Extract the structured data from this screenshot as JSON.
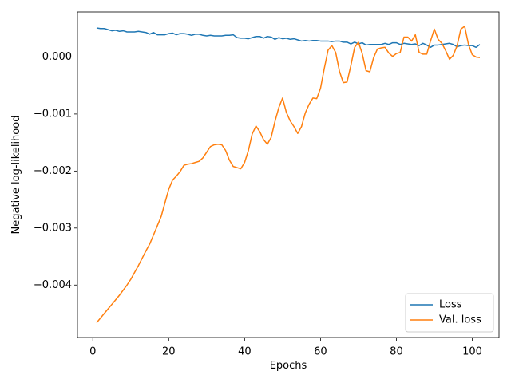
{
  "chart_data": {
    "type": "line",
    "x_label": "Epochs",
    "y_label": "Negative log-likelihood",
    "x": [
      1,
      2,
      3,
      4,
      5,
      6,
      7,
      8,
      9,
      10,
      11,
      12,
      13,
      14,
      15,
      16,
      17,
      18,
      19,
      20,
      21,
      22,
      23,
      24,
      25,
      26,
      27,
      28,
      29,
      30,
      31,
      32,
      33,
      34,
      35,
      36,
      37,
      38,
      39,
      40,
      41,
      42,
      43,
      44,
      45,
      46,
      47,
      48,
      49,
      50,
      51,
      52,
      53,
      54,
      55,
      56,
      57,
      58,
      59,
      60,
      61,
      62,
      63,
      64,
      65,
      66,
      67,
      68,
      69,
      70,
      71,
      72,
      73,
      74,
      75,
      76,
      77,
      78,
      79,
      80,
      81,
      82,
      83,
      84,
      85,
      86,
      87,
      88,
      89,
      90,
      91,
      92,
      93,
      94,
      95,
      96,
      97,
      98,
      99,
      100,
      101,
      102
    ],
    "series": [
      {
        "name": "Loss",
        "color": "#1f77b4",
        "values": [
          0.00051,
          0.0005,
          0.0005,
          0.00048,
          0.00046,
          0.00047,
          0.00045,
          0.00046,
          0.00044,
          0.00044,
          0.00044,
          0.00045,
          0.00044,
          0.00043,
          0.0004,
          0.00043,
          0.00039,
          0.00039,
          0.00039,
          0.00041,
          0.00042,
          0.00039,
          0.00041,
          0.00041,
          0.0004,
          0.00038,
          0.0004,
          0.0004,
          0.00038,
          0.00037,
          0.00038,
          0.00037,
          0.00037,
          0.00037,
          0.00038,
          0.00038,
          0.00039,
          0.00034,
          0.00033,
          0.00033,
          0.00032,
          0.00034,
          0.00036,
          0.00036,
          0.00033,
          0.00036,
          0.00035,
          0.00031,
          0.00034,
          0.00032,
          0.00033,
          0.00031,
          0.00032,
          0.0003,
          0.00028,
          0.00029,
          0.00028,
          0.00029,
          0.00029,
          0.00028,
          0.00028,
          0.00028,
          0.00027,
          0.00028,
          0.00028,
          0.00026,
          0.00026,
          0.00023,
          0.00026,
          0.00023,
          0.00025,
          0.00021,
          0.00022,
          0.00022,
          0.00022,
          0.00022,
          0.00024,
          0.00022,
          0.00025,
          0.00025,
          0.00022,
          0.00024,
          0.00023,
          0.00022,
          0.00023,
          0.0002,
          0.00024,
          0.00021,
          0.00017,
          0.00021,
          0.00021,
          0.00022,
          0.00023,
          0.00024,
          0.00022,
          0.00018,
          0.0002,
          0.00021,
          0.0002,
          0.0002,
          0.00017,
          0.00022
        ]
      },
      {
        "name": "Val. loss",
        "color": "#ff7f0e",
        "values": [
          -0.00466,
          -0.00458,
          -0.0045,
          -0.00442,
          -0.00434,
          -0.00426,
          -0.00418,
          -0.00409,
          -0.004,
          -0.0039,
          -0.00378,
          -0.00366,
          -0.00353,
          -0.0034,
          -0.00328,
          -0.00312,
          -0.00296,
          -0.0028,
          -0.00256,
          -0.00232,
          -0.00216,
          -0.00209,
          -0.00201,
          -0.0019,
          -0.00188,
          -0.00187,
          -0.00185,
          -0.00183,
          -0.00177,
          -0.00167,
          -0.00157,
          -0.00154,
          -0.00153,
          -0.00154,
          -0.00164,
          -0.00181,
          -0.00192,
          -0.00194,
          -0.00196,
          -0.00185,
          -0.00164,
          -0.00135,
          -0.00121,
          -0.00131,
          -0.00145,
          -0.00153,
          -0.00141,
          -0.00113,
          -0.00089,
          -0.00072,
          -0.00097,
          -0.00112,
          -0.00122,
          -0.00134,
          -0.00122,
          -0.00098,
          -0.00083,
          -0.00072,
          -0.00073,
          -0.00055,
          -0.0002,
          0.00012,
          0.0002,
          8e-05,
          -0.00025,
          -0.00045,
          -0.00044,
          -0.00015,
          0.00017,
          0.00026,
          6e-05,
          -0.00024,
          -0.00026,
          -1e-05,
          0.00014,
          0.00016,
          0.00017,
          7e-05,
          1e-05,
          6e-05,
          8e-05,
          0.00035,
          0.00035,
          0.00028,
          0.00039,
          8e-05,
          5e-05,
          5e-05,
          0.00028,
          0.00049,
          0.00031,
          0.00024,
          0.00011,
          -4e-05,
          3e-05,
          0.0002,
          0.00049,
          0.00054,
          0.00022,
          4e-05,
          0.0,
          -1e-05
        ]
      }
    ],
    "xlim": [
      -4.05,
      107.05
    ],
    "xticks": [
      0,
      20,
      40,
      60,
      80,
      100
    ],
    "ylim": [
      -0.00492,
      0.00079
    ],
    "yticks": [
      {
        "value": -0.004,
        "label": "−0.004"
      },
      {
        "value": -0.003,
        "label": "−0.003"
      },
      {
        "value": -0.002,
        "label": "−0.002"
      },
      {
        "value": -0.001,
        "label": "−0.001"
      },
      {
        "value": 0,
        "label": "0.000"
      }
    ],
    "grid": false,
    "legend": "lower right"
  }
}
